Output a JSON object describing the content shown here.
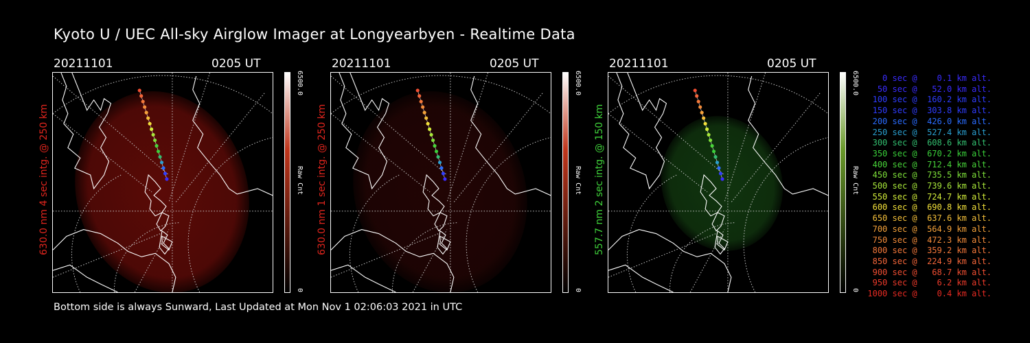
{
  "title": "Kyoto U / UEC All-sky Airglow Imager at Longyearbyen - Realtime Data",
  "footer": "Bottom side is always Sunward, Last Updated at Mon Nov  1 02:06:03 2021 in UTC",
  "panels": [
    {
      "date": "20211101",
      "time": "0205 UT",
      "ylabel": "630.0 nm 4 sec intg. @ 250 km",
      "label_color": "#e0251d",
      "glow_color": "#6a0c08",
      "glow_opacity": 0.85,
      "colorbar_top": "#ffffff",
      "colorbar_mid": "#c0361c",
      "colorbar_max": "6500.0",
      "colorbar_unit": "Raw Cnt",
      "colorbar_min": "0"
    },
    {
      "date": "20211101",
      "time": "0205 UT",
      "ylabel": "630.0 nm 1 sec intg. @ 250 km",
      "label_color": "#e0251d",
      "glow_color": "#2a0605",
      "glow_opacity": 0.8,
      "colorbar_top": "#ffffff",
      "colorbar_mid": "#c0361c",
      "colorbar_max": "6500.0",
      "colorbar_unit": "Raw Cnt",
      "colorbar_min": "0"
    },
    {
      "date": "20211101",
      "time": "0205 UT",
      "ylabel": "557.7 nm 2 sec intg. @ 150 km",
      "label_color": "#3fd13a",
      "glow_color": "#123a10",
      "glow_opacity": 0.9,
      "colorbar_top": "#ffffff",
      "colorbar_mid": "#6a9a2a",
      "colorbar_max": "6500.0",
      "colorbar_unit": "Raw Cnt",
      "colorbar_min": "0"
    }
  ],
  "legend": [
    {
      "text": "   0 sec @    0.1 km alt.",
      "color": "#3a2cff"
    },
    {
      "text": "  50 sec @   52.0 km alt.",
      "color": "#3a2cff"
    },
    {
      "text": " 100 sec @  160.2 km alt.",
      "color": "#2f3dff"
    },
    {
      "text": " 150 sec @  303.8 km alt.",
      "color": "#2f3dff"
    },
    {
      "text": " 200 sec @  426.0 km alt.",
      "color": "#2a6cff"
    },
    {
      "text": " 250 sec @  527.4 km alt.",
      "color": "#2a9fd0"
    },
    {
      "text": " 300 sec @  608.6 km alt.",
      "color": "#33c070"
    },
    {
      "text": " 350 sec @  670.2 km alt.",
      "color": "#3ad13a"
    },
    {
      "text": " 400 sec @  712.4 km alt.",
      "color": "#49d63a"
    },
    {
      "text": " 450 sec @  735.5 km alt.",
      "color": "#7ee03a"
    },
    {
      "text": " 500 sec @  739.6 km alt.",
      "color": "#a8e83a"
    },
    {
      "text": " 550 sec @  724.7 km alt.",
      "color": "#d2ec3a"
    },
    {
      "text": " 600 sec @  690.8 km alt.",
      "color": "#f2e03a"
    },
    {
      "text": " 650 sec @  637.6 km alt.",
      "color": "#f5c03a"
    },
    {
      "text": " 700 sec @  564.9 km alt.",
      "color": "#f5a23a"
    },
    {
      "text": " 750 sec @  472.3 km alt.",
      "color": "#f58c3a"
    },
    {
      "text": " 800 sec @  359.2 km alt.",
      "color": "#f5783a"
    },
    {
      "text": " 850 sec @  224.9 km alt.",
      "color": "#f5663a"
    },
    {
      "text": " 900 sec @   68.7 km alt.",
      "color": "#f24e32"
    },
    {
      "text": " 950 sec @    6.2 km alt.",
      "color": "#ee3a2a"
    },
    {
      "text": "1000 sec @    0.4 km alt.",
      "color": "#e82a22"
    }
  ]
}
